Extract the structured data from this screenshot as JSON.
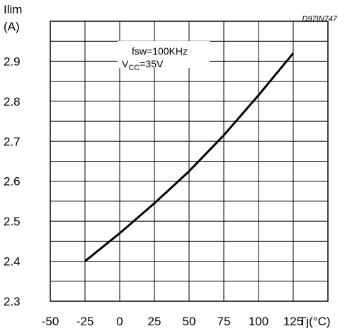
{
  "chart_data": {
    "type": "line",
    "title": "",
    "figure_code": "D97IN747",
    "ylabel": "Ilim",
    "yunit": "(A)",
    "xlabel": "Tj(°C)",
    "xlim": [
      -50,
      150
    ],
    "ylim": [
      2.3,
      3.0
    ],
    "x_ticks": [
      "-50",
      "-25",
      "0",
      "25",
      "50",
      "75",
      "100",
      "125"
    ],
    "y_ticks": [
      "2.3",
      "2.4",
      "2.5",
      "2.6",
      "2.7",
      "2.8",
      "2.9"
    ],
    "grid": true,
    "annotation": {
      "line1": "fsw=100KHz",
      "line2_main": "V",
      "line2_sub": "CC",
      "line2_rest": "=35V"
    },
    "series": [
      {
        "x": [
          -25,
          0,
          25,
          50,
          75,
          100,
          125
        ],
        "y": [
          2.4,
          2.47,
          2.545,
          2.625,
          2.715,
          2.815,
          2.92
        ]
      }
    ]
  }
}
